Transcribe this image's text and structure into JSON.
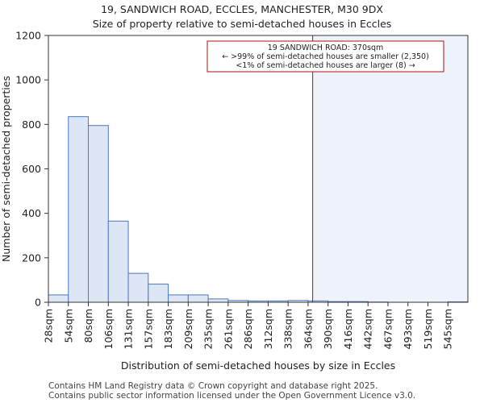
{
  "header": {
    "title": "19, SANDWICH ROAD, ECCLES, MANCHESTER, M30 9DX",
    "subtitle": "Size of property relative to semi-detached houses in Eccles"
  },
  "footer": {
    "line1": "Contains HM Land Registry data © Crown copyright and database right 2025.",
    "line2": "Contains public sector information licensed under the Open Government Licence v3.0."
  },
  "chart_data": {
    "type": "bar",
    "xlabel": "Distribution of semi-detached houses by size in Eccles",
    "ylabel": "Number of semi-detached properties",
    "ylim": [
      0,
      1200
    ],
    "yticks": [
      0,
      200,
      400,
      600,
      800,
      1000,
      1200
    ],
    "bin_edges": [
      28,
      54,
      80,
      106,
      131,
      157,
      183,
      209,
      235,
      261,
      286,
      312,
      338,
      364,
      390,
      416,
      442,
      467,
      493,
      519,
      545
    ],
    "categories": [
      "28sqm",
      "54sqm",
      "80sqm",
      "106sqm",
      "131sqm",
      "157sqm",
      "183sqm",
      "209sqm",
      "235sqm",
      "261sqm",
      "286sqm",
      "312sqm",
      "338sqm",
      "364sqm",
      "390sqm",
      "416sqm",
      "442sqm",
      "467sqm",
      "493sqm",
      "519sqm",
      "545sqm"
    ],
    "values": [
      33,
      835,
      795,
      365,
      130,
      82,
      33,
      33,
      15,
      8,
      6,
      6,
      8,
      6,
      3,
      3,
      1,
      0,
      0,
      0,
      2
    ],
    "bar_color": "#dce6f5",
    "bar_edge_color": "#4a78c2",
    "highlight_color": "#eef2fb",
    "marker": {
      "x": 370,
      "color": "#aa1111",
      "label_lines": [
        "19 SANDWICH ROAD: 370sqm",
        "← >99% of semi-detached houses are smaller (2,350)",
        "<1% of semi-detached houses are larger (8) →"
      ]
    },
    "grid": false
  }
}
